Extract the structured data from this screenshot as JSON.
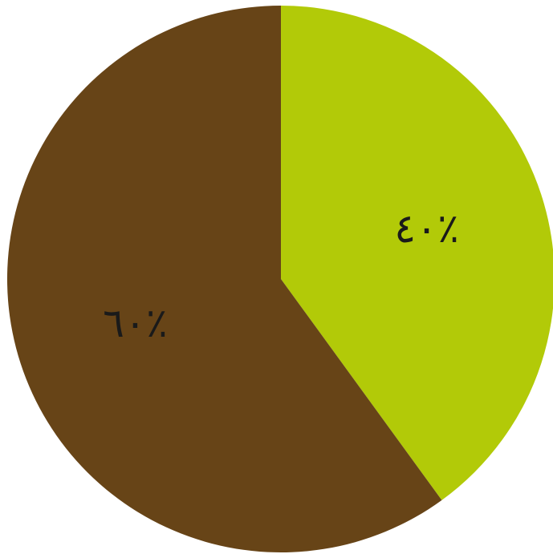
{
  "chart_data": {
    "type": "pie",
    "title": "",
    "start_angle_deg": 0,
    "direction": "clockwise",
    "slices": [
      {
        "value": 40,
        "label": "٪٤٠",
        "color": "#b2ca08"
      },
      {
        "value": 60,
        "label": "٪٦٠",
        "color": "#674417"
      }
    ]
  }
}
